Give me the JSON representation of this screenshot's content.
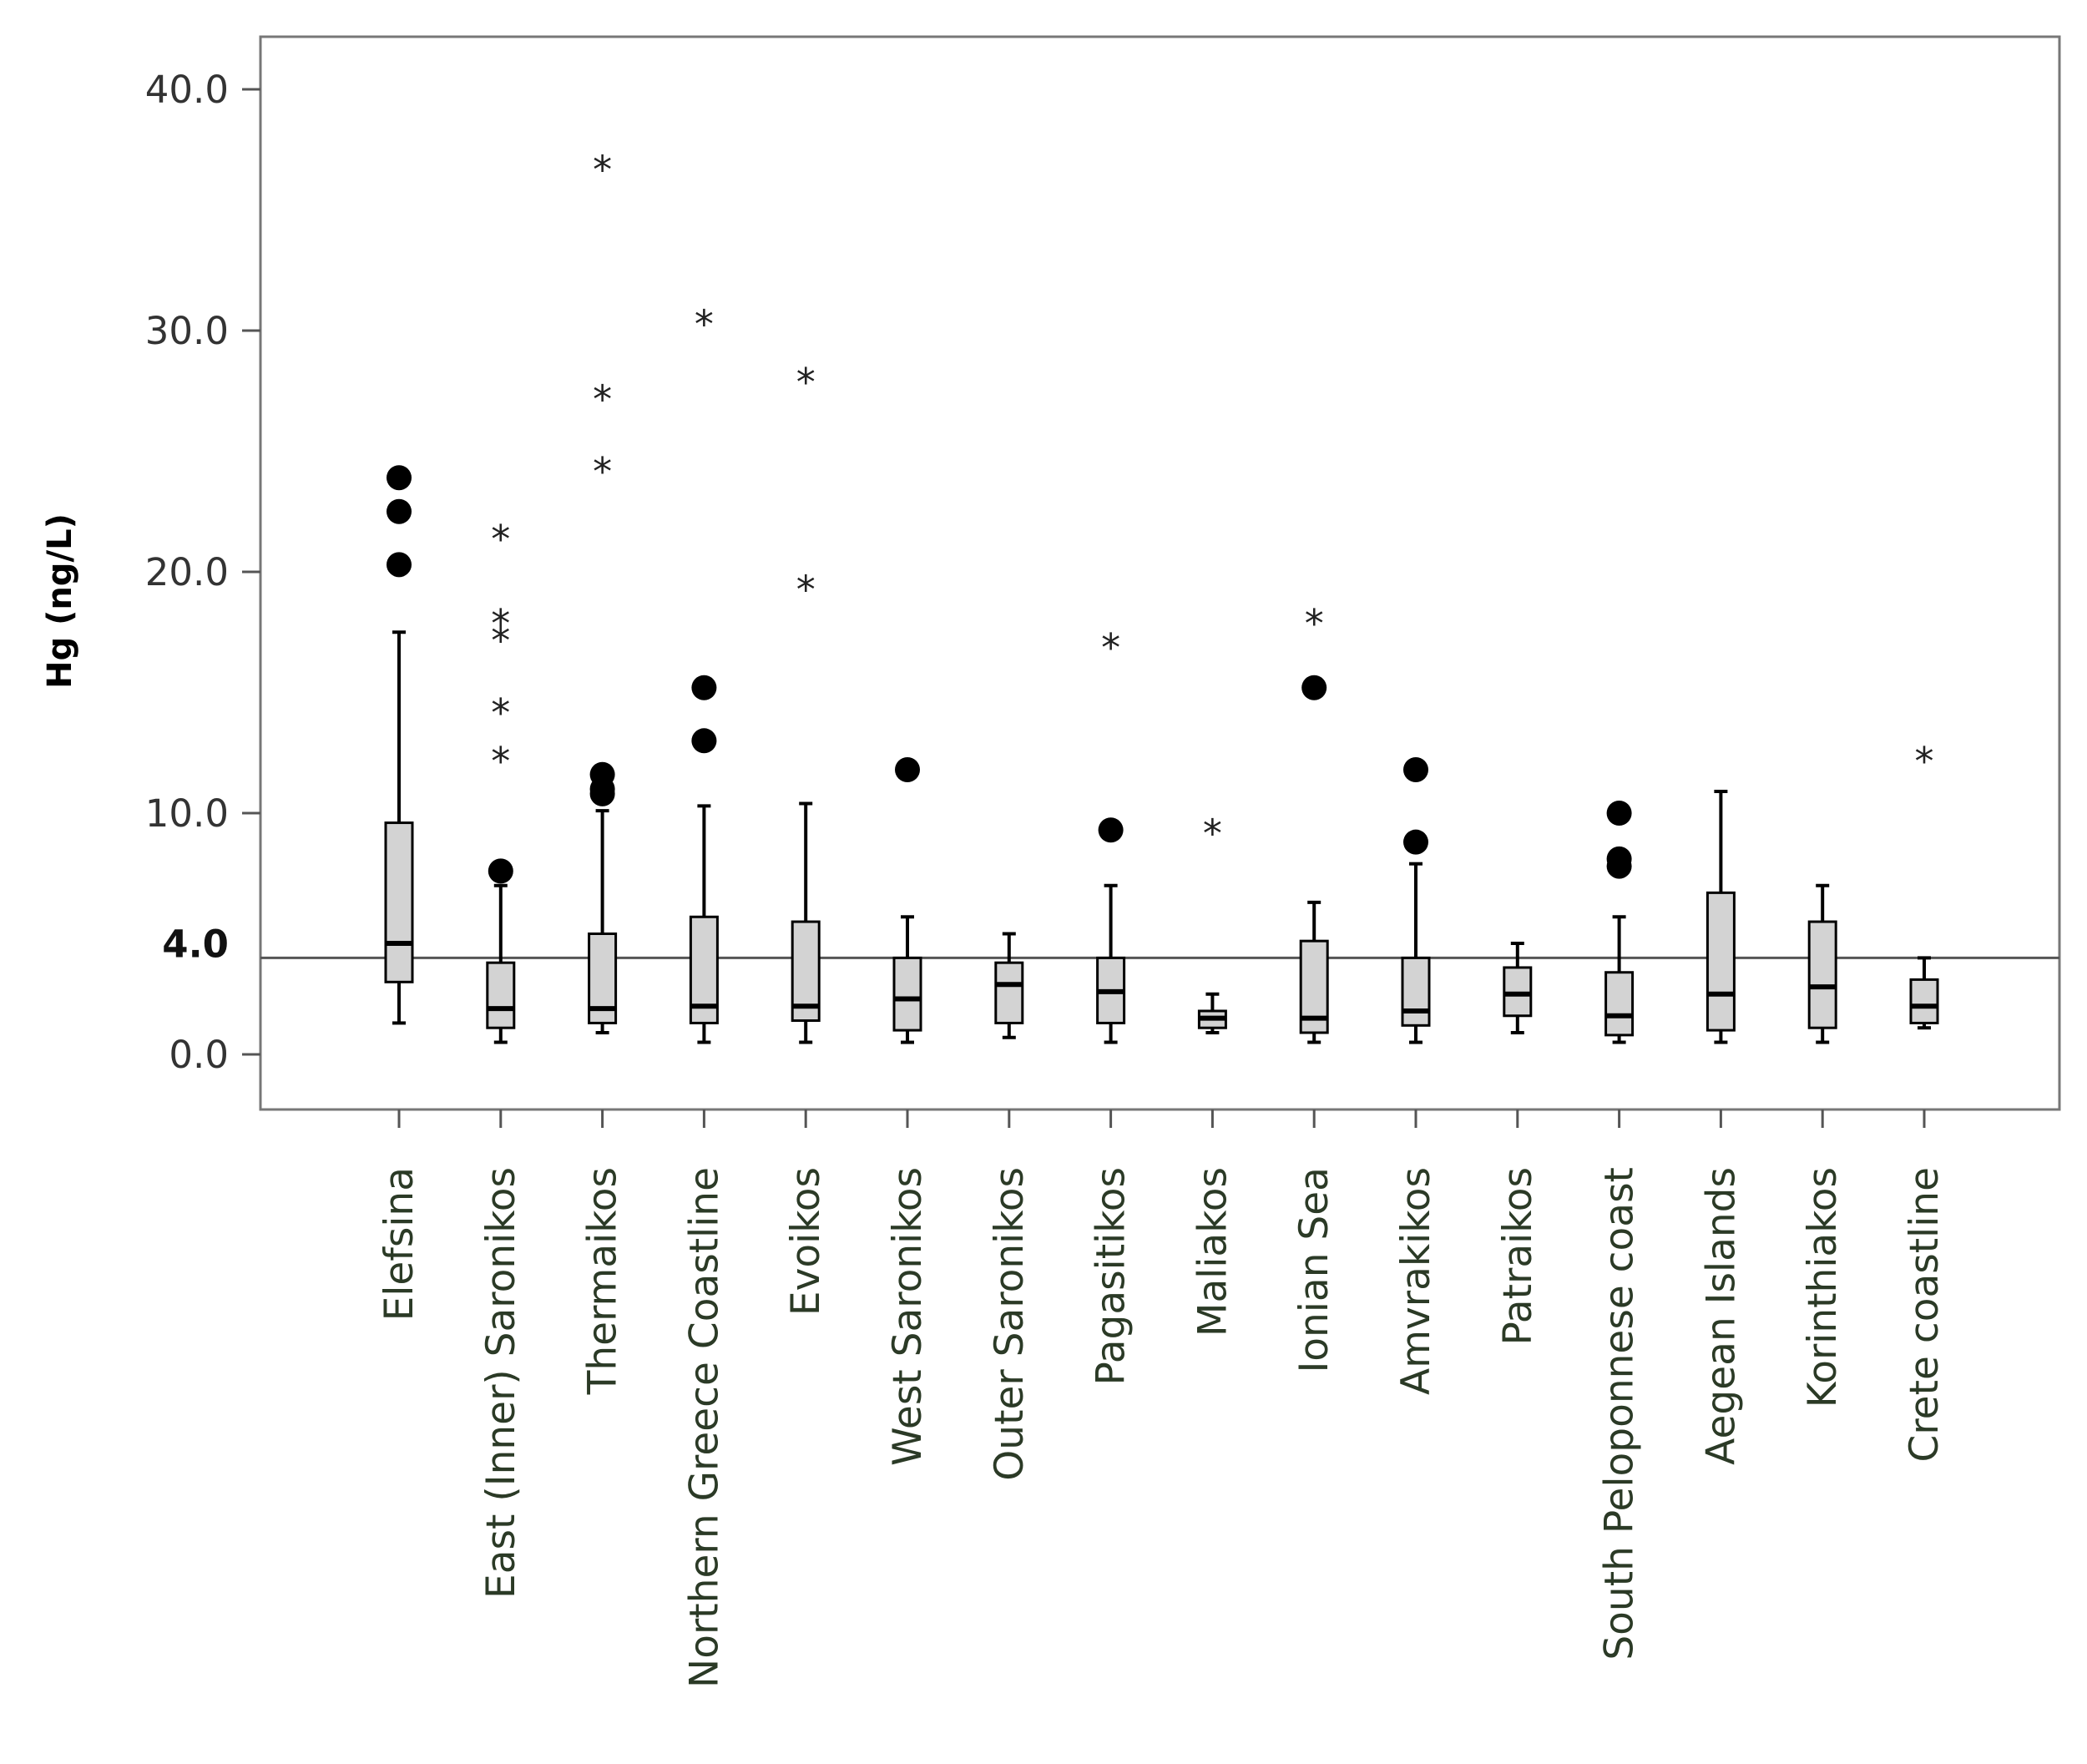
{
  "chart_data": {
    "type": "boxplot",
    "title": "",
    "xlabel": "",
    "ylabel": "Hg (ng/L)",
    "ylim": [
      -2.2,
      42.2
    ],
    "yticks": [
      {
        "value": 0,
        "label": "0.0"
      },
      {
        "value": 10,
        "label": "10.0"
      },
      {
        "value": 20,
        "label": "20.0"
      },
      {
        "value": 30,
        "label": "30.0"
      },
      {
        "value": 40,
        "label": "40.0"
      }
    ],
    "reference_line": {
      "value": 4.0,
      "label": "4.0"
    },
    "grid": false,
    "categories": [
      "Elefsina",
      "East (Inner) Saronikos",
      "Thermaikos",
      "Northern Greece Coastline",
      "Evoikos",
      "West Saronikos",
      "Outer Saronikos",
      "Pagasitikos",
      "Maliakos",
      "Ionian Sea",
      "Amvrakikos",
      "Patraikos",
      "South Peloponnese coast",
      "Aegean Islands",
      "Korinthiakos",
      "Crete coastline"
    ],
    "boxes": [
      {
        "whisker_low": 1.3,
        "q1": 3.0,
        "median": 4.6,
        "q3": 9.6,
        "whisker_high": 17.5,
        "outliers": [
          20.3,
          22.5,
          23.9
        ],
        "extremes": []
      },
      {
        "whisker_low": 0.5,
        "q1": 1.1,
        "median": 1.9,
        "q3": 3.8,
        "whisker_high": 7.0,
        "outliers": [
          7.6
        ],
        "extremes": [
          12.5,
          14.5,
          17.5,
          18.2,
          21.7
        ]
      },
      {
        "whisker_low": 0.9,
        "q1": 1.3,
        "median": 1.9,
        "q3": 5.0,
        "whisker_high": 10.1,
        "outliers": [
          10.8,
          11.0,
          11.6
        ],
        "extremes": [
          24.5,
          27.5,
          37.0
        ]
      },
      {
        "whisker_low": 0.5,
        "q1": 1.3,
        "median": 2.0,
        "q3": 5.7,
        "whisker_high": 10.3,
        "outliers": [
          13.0,
          15.2
        ],
        "extremes": [
          30.6
        ]
      },
      {
        "whisker_low": 0.5,
        "q1": 1.4,
        "median": 2.0,
        "q3": 5.5,
        "whisker_high": 10.4,
        "outliers": [],
        "extremes": [
          19.6,
          28.2
        ]
      },
      {
        "whisker_low": 0.5,
        "q1": 1.0,
        "median": 2.3,
        "q3": 4.0,
        "whisker_high": 5.7,
        "outliers": [
          11.8
        ],
        "extremes": []
      },
      {
        "whisker_low": 0.7,
        "q1": 1.3,
        "median": 2.9,
        "q3": 3.8,
        "whisker_high": 5.0,
        "outliers": [],
        "extremes": []
      },
      {
        "whisker_low": 0.5,
        "q1": 1.3,
        "median": 2.6,
        "q3": 4.0,
        "whisker_high": 7.0,
        "outliers": [
          9.3
        ],
        "extremes": [
          17.2
        ]
      },
      {
        "whisker_low": 0.9,
        "q1": 1.1,
        "median": 1.5,
        "q3": 1.8,
        "whisker_high": 2.5,
        "outliers": [],
        "extremes": [
          9.5
        ]
      },
      {
        "whisker_low": 0.5,
        "q1": 0.9,
        "median": 1.5,
        "q3": 4.7,
        "whisker_high": 6.3,
        "outliers": [
          15.2
        ],
        "extremes": [
          18.2
        ]
      },
      {
        "whisker_low": 0.5,
        "q1": 1.2,
        "median": 1.8,
        "q3": 4.0,
        "whisker_high": 7.9,
        "outliers": [
          8.8,
          11.8
        ],
        "extremes": []
      },
      {
        "whisker_low": 0.9,
        "q1": 1.6,
        "median": 2.5,
        "q3": 3.6,
        "whisker_high": 4.6,
        "outliers": [],
        "extremes": []
      },
      {
        "whisker_low": 0.5,
        "q1": 0.8,
        "median": 1.6,
        "q3": 3.4,
        "whisker_high": 5.7,
        "outliers": [
          7.8,
          8.1,
          10.0
        ],
        "extremes": []
      },
      {
        "whisker_low": 0.5,
        "q1": 1.0,
        "median": 2.5,
        "q3": 6.7,
        "whisker_high": 10.9,
        "outliers": [],
        "extremes": []
      },
      {
        "whisker_low": 0.5,
        "q1": 1.1,
        "median": 2.8,
        "q3": 5.5,
        "whisker_high": 7.0,
        "outliers": [],
        "extremes": []
      },
      {
        "whisker_low": 1.1,
        "q1": 1.3,
        "median": 2.0,
        "q3": 3.1,
        "whisker_high": 4.0,
        "outliers": [],
        "extremes": [
          12.5
        ]
      }
    ],
    "colors": {
      "box_fill": "#d3d3d3",
      "box_stroke": "#000000",
      "median": "#000000",
      "frame": "#777777",
      "reference_line": "#555555",
      "outlier": "#000000"
    },
    "legend": "none"
  }
}
